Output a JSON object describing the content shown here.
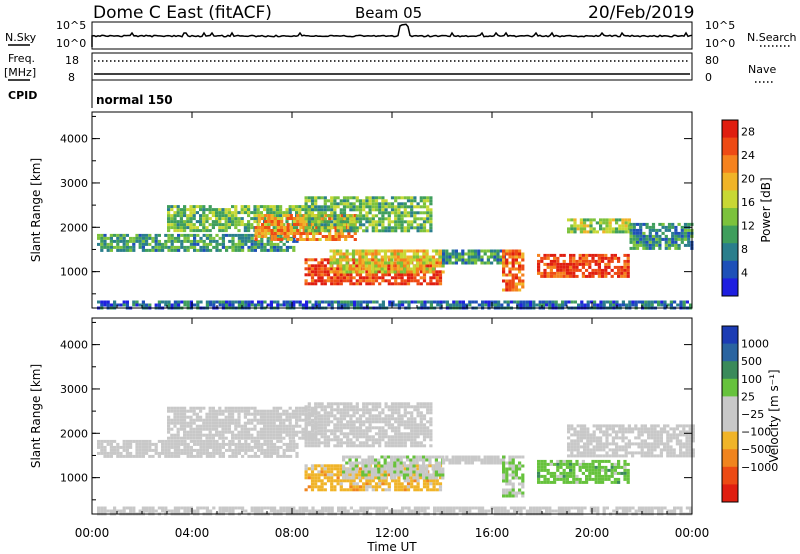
{
  "header": {
    "station": "Dome C East (fitACF)",
    "beam": "Beam 05",
    "date": "20/Feb/2019"
  },
  "params": {
    "nsky_label": "N.Sky",
    "nsearch_label": "N.Search",
    "freq_label_1": "Freq.",
    "freq_label_2": "[MHz]",
    "nave_label": "Nave",
    "cpid_label": "CPID",
    "cpid_value": "normal 150",
    "noise_ticks": [
      "10^5",
      "10^0"
    ],
    "freq_ticks": [
      "18",
      "8"
    ],
    "nave_ticks": [
      "80",
      "0"
    ]
  },
  "chart_data": [
    {
      "type": "heatmap",
      "title": "",
      "xlabel": "Time UT",
      "ylabel": "Slant Range [km]",
      "x_ticks": [
        "00:00",
        "04:00",
        "08:00",
        "12:00",
        "16:00",
        "20:00",
        "00:00"
      ],
      "xlim_hours": [
        0,
        24
      ],
      "y_ticks": [
        "1000",
        "2000",
        "3000",
        "4000"
      ],
      "ylim_km": [
        180,
        4600
      ],
      "colorbar": {
        "label": "Power [dB]",
        "ticks": [
          "4",
          "8",
          "12",
          "16",
          "20",
          "24",
          "28"
        ],
        "range": [
          0,
          30
        ],
        "colors": [
          "#1f1fe0",
          "#1e50b8",
          "#2a7e8c",
          "#3f9e5c",
          "#7cc23c",
          "#c8d834",
          "#f0b428",
          "#f5821e",
          "#ee4a14",
          "#e01e10"
        ]
      },
      "regions": [
        {
          "t0": 0.2,
          "t1": 8.2,
          "r0": 1500,
          "r1": 1850,
          "value": 10
        },
        {
          "t0": 3.0,
          "t1": 9.0,
          "r0": 1900,
          "r1": 2500,
          "value": 13
        },
        {
          "t0": 6.5,
          "t1": 10.5,
          "r0": 1700,
          "r1": 2300,
          "value": 22
        },
        {
          "t0": 8.5,
          "t1": 14.0,
          "r0": 700,
          "r1": 1300,
          "value": 27
        },
        {
          "t0": 9.5,
          "t1": 14.0,
          "r0": 1000,
          "r1": 1500,
          "value": 18
        },
        {
          "t0": 8.5,
          "t1": 13.5,
          "r0": 1900,
          "r1": 2700,
          "value": 12
        },
        {
          "t0": 14.0,
          "t1": 16.5,
          "r0": 1200,
          "r1": 1500,
          "value": 9
        },
        {
          "t0": 16.4,
          "t1": 17.2,
          "r0": 600,
          "r1": 1500,
          "value": 24
        },
        {
          "t0": 17.8,
          "t1": 21.5,
          "r0": 900,
          "r1": 1400,
          "value": 26
        },
        {
          "t0": 19.0,
          "t1": 21.5,
          "r0": 1900,
          "r1": 2200,
          "value": 14
        },
        {
          "t0": 21.5,
          "t1": 24.0,
          "r0": 1500,
          "r1": 2100,
          "value": 9
        },
        {
          "t0": 0.2,
          "t1": 24.0,
          "r0": 200,
          "r1": 350,
          "value": 6
        }
      ]
    },
    {
      "type": "heatmap",
      "title": "",
      "xlabel": "Time UT",
      "ylabel": "Slant Range [km]",
      "x_ticks": [
        "00:00",
        "04:00",
        "08:00",
        "12:00",
        "16:00",
        "20:00",
        "00:00"
      ],
      "xlim_hours": [
        0,
        24
      ],
      "y_ticks": [
        "1000",
        "2000",
        "3000",
        "4000"
      ],
      "ylim_km": [
        180,
        4600
      ],
      "colorbar": {
        "label": "Velocity [m s⁻¹]",
        "ticks": [
          "1000",
          "500",
          "100",
          "25",
          "−25",
          "−100",
          "−500",
          "−1000"
        ],
        "range": [
          -1000,
          1000
        ],
        "colors": [
          "#1c3cb4",
          "#2a64a0",
          "#3a8a5a",
          "#66c23c",
          "#c8c8c8",
          "#c8c8c8",
          "#f0b428",
          "#f0841e",
          "#ec4a14",
          "#e01e10"
        ]
      },
      "regions": [
        {
          "t0": 0.2,
          "t1": 8.2,
          "r0": 1500,
          "r1": 1850,
          "value": 0
        },
        {
          "t0": 3.0,
          "t1": 9.0,
          "r0": 1900,
          "r1": 2600,
          "value": 0
        },
        {
          "t0": 8.5,
          "t1": 13.5,
          "r0": 1700,
          "r1": 2700,
          "value": 0
        },
        {
          "t0": 8.5,
          "t1": 14.0,
          "r0": 700,
          "r1": 1300,
          "value": -300
        },
        {
          "t0": 10.0,
          "t1": 14.0,
          "r0": 1000,
          "r1": 1500,
          "value": 150
        },
        {
          "t0": 14.0,
          "t1": 16.5,
          "r0": 1300,
          "r1": 1500,
          "value": 0
        },
        {
          "t0": 16.4,
          "t1": 17.2,
          "r0": 600,
          "r1": 1500,
          "value": 200
        },
        {
          "t0": 17.8,
          "t1": 21.5,
          "r0": 900,
          "r1": 1400,
          "value": 300
        },
        {
          "t0": 19.0,
          "t1": 24.0,
          "r0": 1500,
          "r1": 2200,
          "value": 0
        },
        {
          "t0": 0.2,
          "t1": 24.0,
          "r0": 200,
          "r1": 350,
          "value": -60
        }
      ]
    }
  ]
}
